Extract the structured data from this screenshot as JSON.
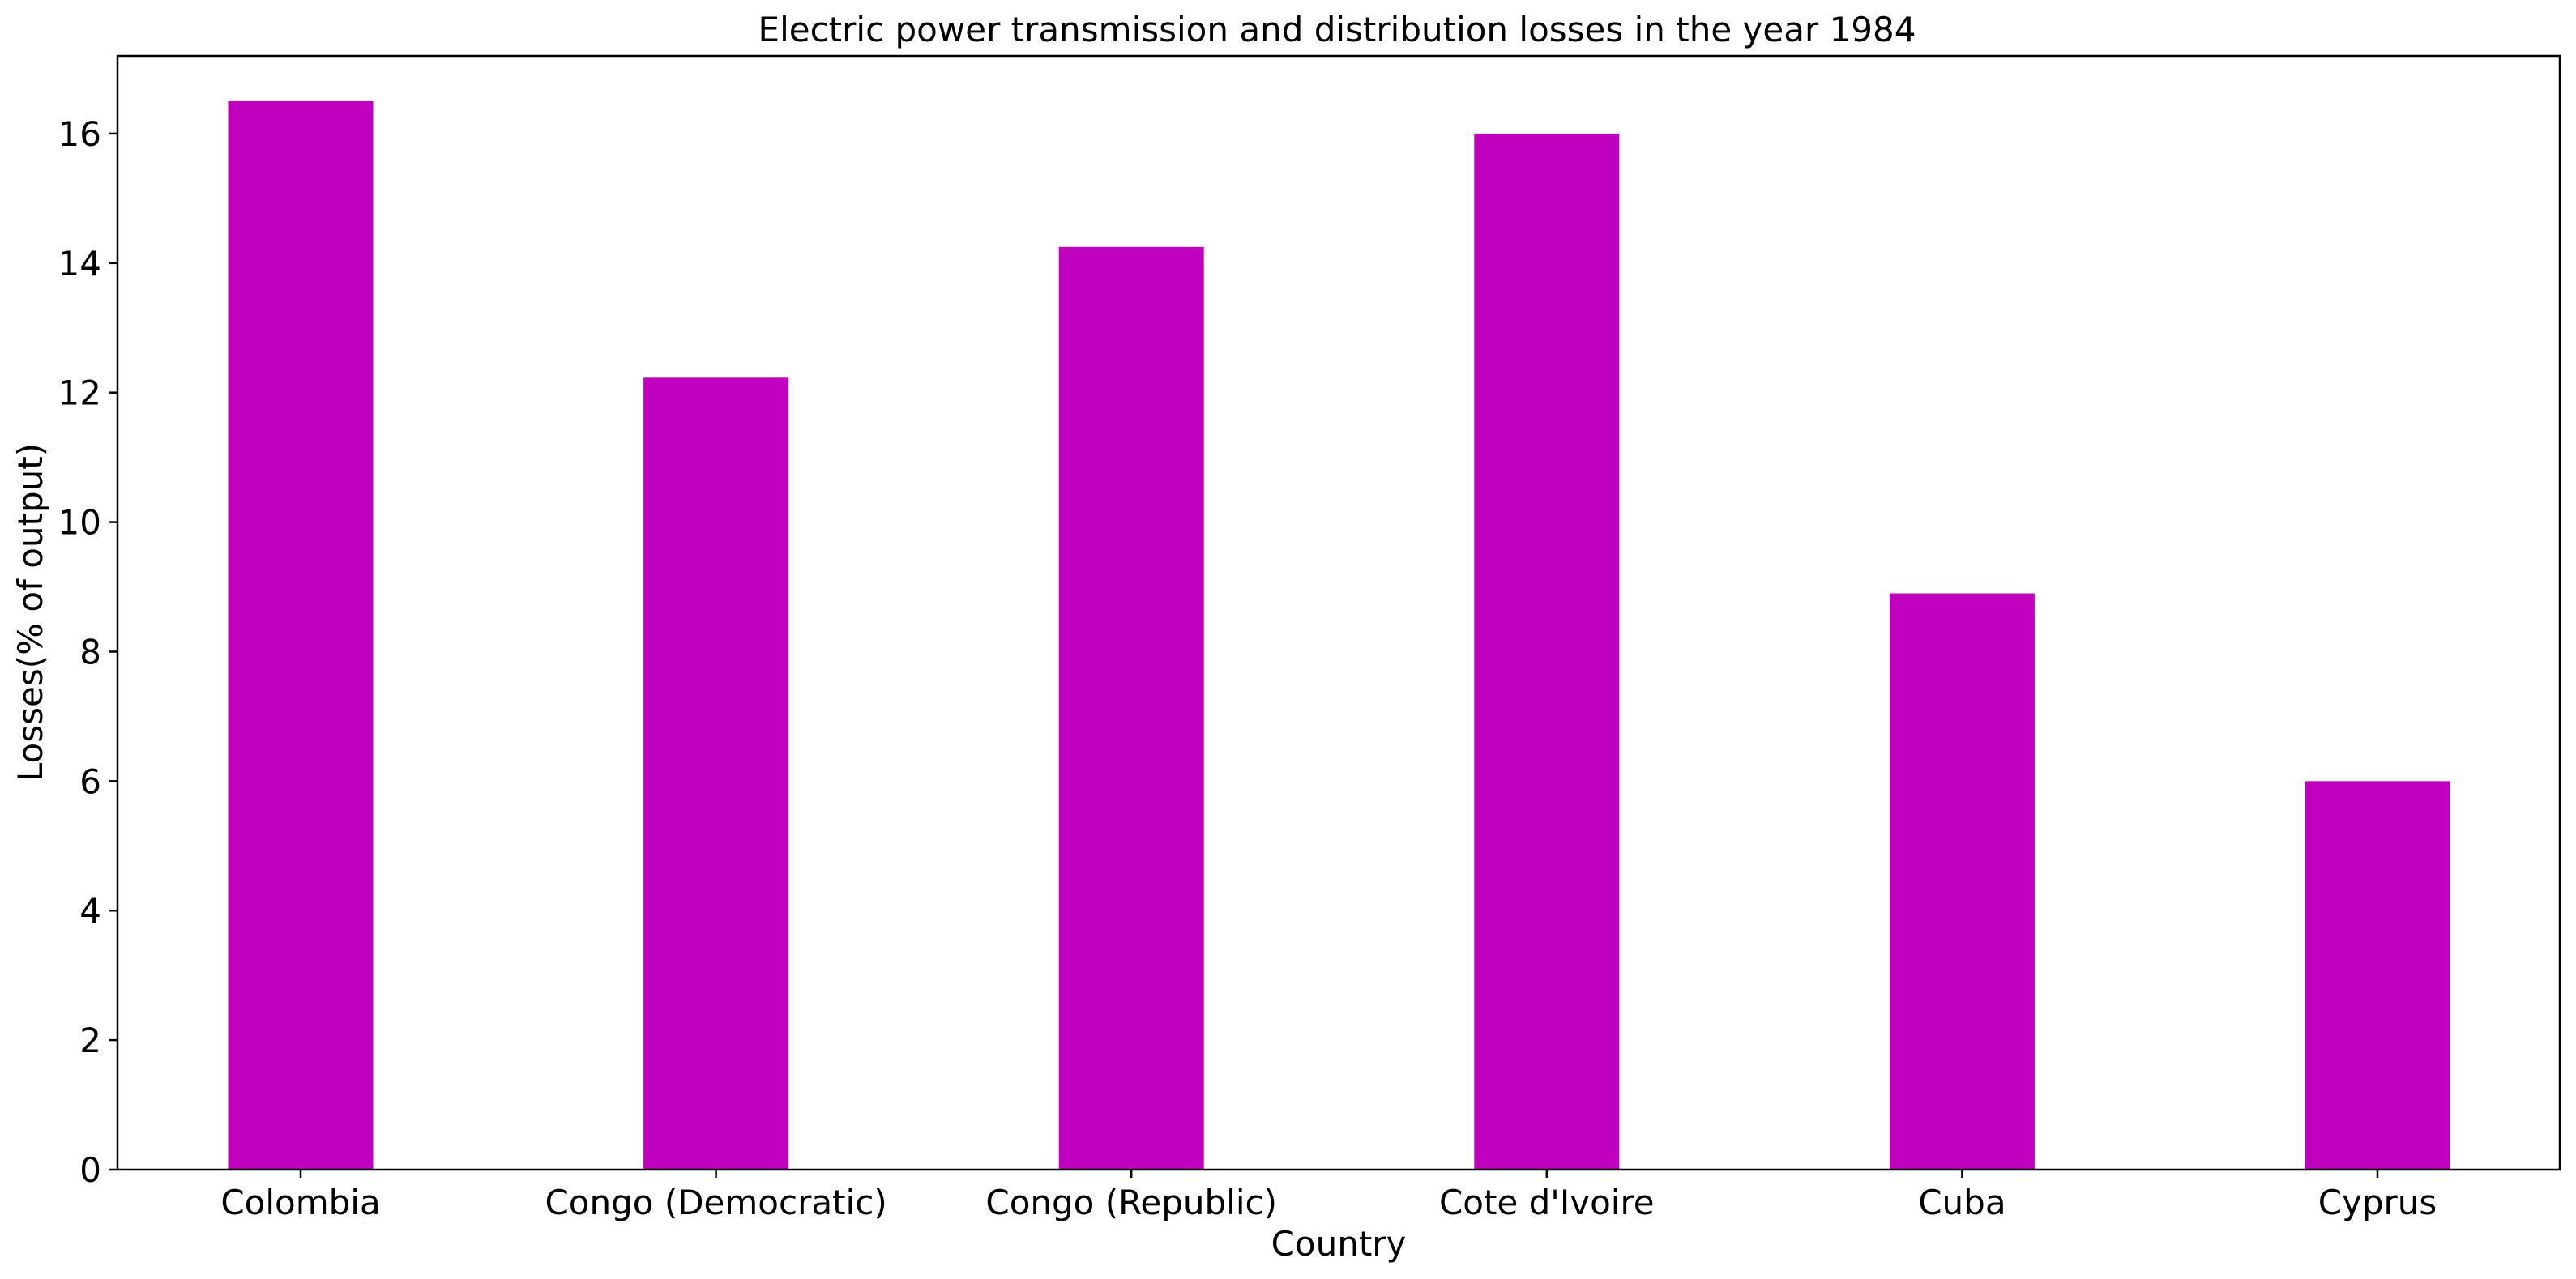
{
  "chart_data": {
    "type": "bar",
    "title": "Electric power transmission and distribution losses in the year 1984",
    "xlabel": "Country",
    "ylabel": "Losses(% of output)",
    "categories": [
      "Colombia",
      "Congo (Democratic)",
      "Congo (Republic)",
      "Cote d'Ivoire",
      "Cuba",
      "Cyprus"
    ],
    "values": [
      16.5,
      12.23,
      14.25,
      16.0,
      8.9,
      6.0
    ],
    "ylim": [
      0,
      17.2
    ],
    "yticks": [
      0,
      2,
      4,
      6,
      8,
      10,
      12,
      14,
      16
    ],
    "grid": false,
    "legend": "none",
    "bar_color": "#bf00bf"
  }
}
